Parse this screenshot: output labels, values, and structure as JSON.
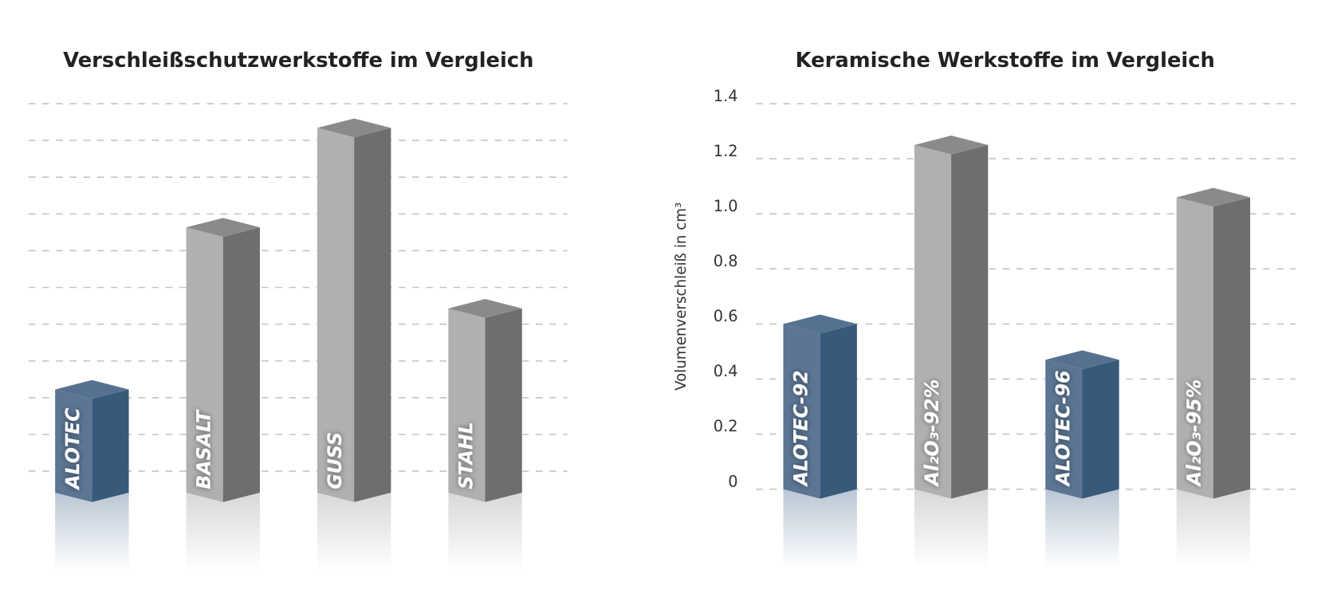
{
  "colors": {
    "blue_front": "#5b7593",
    "blue_side": "#375a7b",
    "blue_top": "#56718f",
    "gray_front": "#b0b0b0",
    "gray_side": "#6e6e6e",
    "gray_top": "#8a8a8a"
  },
  "chart_data": [
    {
      "type": "bar",
      "title": "Verschleißschutzwerkstoffe im Vergleich",
      "xlabel": "",
      "ylabel": "",
      "note": "no numeric axis shown; values in gridline units",
      "gridlines": 11,
      "ylim": [
        0,
        11
      ],
      "grid": true,
      "categories": [
        "ALOTEC",
        "BASALT",
        "GUSS",
        "STAHL"
      ],
      "values": [
        2.8,
        7.2,
        9.9,
        5.0
      ],
      "highlight": [
        "ALOTEC"
      ]
    },
    {
      "type": "bar",
      "title": "Keramische Werkstoffe im Vergleich",
      "xlabel": "",
      "ylabel": "Volumenverschleiß in cm³",
      "ylim": [
        0,
        1.4
      ],
      "yticks": [
        "0",
        "0.2",
        "0.4",
        "0.6",
        "0.8",
        "1.0",
        "1.2",
        "1.4"
      ],
      "grid": true,
      "categories": [
        "ALOTEC-92",
        "Al₂O₃-92%",
        "ALOTEC-96",
        "Al₂O₃-95%"
      ],
      "values": [
        0.6,
        1.25,
        0.47,
        1.06
      ],
      "highlight": [
        "ALOTEC-92",
        "ALOTEC-96"
      ]
    }
  ]
}
